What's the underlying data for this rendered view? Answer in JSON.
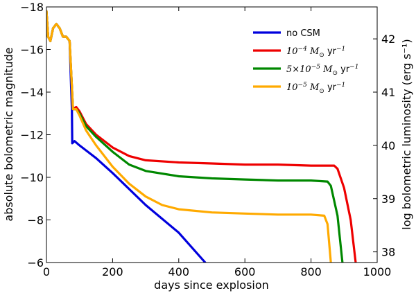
{
  "chart_data": {
    "type": "line",
    "xlabel": "days since explosion",
    "ylabel": "absolute bolometric magnitude",
    "ylabel_right": "log bolometric luminosity (erg s⁻¹)",
    "xlim": [
      0,
      1000
    ],
    "ylim": [
      -6,
      -18
    ],
    "x_ticks": [
      0,
      200,
      400,
      600,
      800,
      1000
    ],
    "y_ticks": [
      -18,
      -16,
      -14,
      -12,
      -10,
      -8,
      -6
    ],
    "y_right_ticks": [
      38,
      39,
      40,
      41,
      42
    ],
    "y_right_scale": "log L = 39.6 - 0.4 (M + 10.5)",
    "grid": false,
    "legend_position": "top-right",
    "series": [
      {
        "name": "no CSM",
        "color": "#0000dd",
        "points": [
          [
            0,
            -17.8
          ],
          [
            5,
            -16.6
          ],
          [
            12,
            -16.4
          ],
          [
            20,
            -17.0
          ],
          [
            30,
            -17.2
          ],
          [
            40,
            -17.0
          ],
          [
            50,
            -16.6
          ],
          [
            60,
            -16.6
          ],
          [
            70,
            -16.4
          ],
          [
            74,
            -14.5
          ],
          [
            77,
            -13.2
          ],
          [
            78,
            -11.6
          ],
          [
            85,
            -11.7
          ],
          [
            100,
            -11.5
          ],
          [
            150,
            -10.9
          ],
          [
            200,
            -10.2
          ],
          [
            300,
            -8.7
          ],
          [
            400,
            -7.4
          ],
          [
            480,
            -6.0
          ]
        ]
      },
      {
        "name": "10⁻⁴ M⊙ yr⁻¹",
        "label_parts": {
          "coef": "10",
          "exp": "−4",
          "unit": "M",
          "sub": "⊙",
          "tail": "yr",
          "tail_exp": "−1"
        },
        "color": "#ee0000",
        "points": [
          [
            0,
            -17.8
          ],
          [
            5,
            -16.6
          ],
          [
            12,
            -16.4
          ],
          [
            20,
            -17.0
          ],
          [
            30,
            -17.2
          ],
          [
            40,
            -17.0
          ],
          [
            50,
            -16.6
          ],
          [
            60,
            -16.6
          ],
          [
            70,
            -16.4
          ],
          [
            76,
            -14.5
          ],
          [
            80,
            -13.2
          ],
          [
            90,
            -13.3
          ],
          [
            100,
            -13.1
          ],
          [
            120,
            -12.5
          ],
          [
            150,
            -12.0
          ],
          [
            200,
            -11.4
          ],
          [
            250,
            -11.0
          ],
          [
            300,
            -10.8
          ],
          [
            400,
            -10.7
          ],
          [
            500,
            -10.65
          ],
          [
            600,
            -10.6
          ],
          [
            700,
            -10.6
          ],
          [
            800,
            -10.55
          ],
          [
            870,
            -10.55
          ],
          [
            880,
            -10.4
          ],
          [
            900,
            -9.5
          ],
          [
            920,
            -8.0
          ],
          [
            935,
            -6.0
          ]
        ]
      },
      {
        "name": "5×10⁻⁵ M⊙ yr⁻¹",
        "label_parts": {
          "coef": "5×10",
          "exp": "−5",
          "unit": "M",
          "sub": "⊙",
          "tail": "yr",
          "tail_exp": "−1"
        },
        "color": "#008800",
        "points": [
          [
            0,
            -17.8
          ],
          [
            5,
            -16.6
          ],
          [
            12,
            -16.4
          ],
          [
            20,
            -17.0
          ],
          [
            30,
            -17.2
          ],
          [
            40,
            -17.0
          ],
          [
            50,
            -16.6
          ],
          [
            60,
            -16.6
          ],
          [
            70,
            -16.4
          ],
          [
            76,
            -14.5
          ],
          [
            80,
            -13.2
          ],
          [
            90,
            -13.2
          ],
          [
            100,
            -13.0
          ],
          [
            120,
            -12.4
          ],
          [
            150,
            -11.9
          ],
          [
            200,
            -11.2
          ],
          [
            250,
            -10.6
          ],
          [
            300,
            -10.3
          ],
          [
            400,
            -10.05
          ],
          [
            500,
            -9.95
          ],
          [
            600,
            -9.9
          ],
          [
            700,
            -9.85
          ],
          [
            800,
            -9.85
          ],
          [
            850,
            -9.8
          ],
          [
            860,
            -9.6
          ],
          [
            880,
            -8.2
          ],
          [
            895,
            -6.0
          ]
        ]
      },
      {
        "name": "10⁻⁵ M⊙ yr⁻¹",
        "label_parts": {
          "coef": "10",
          "exp": "−5",
          "unit": "M",
          "sub": "⊙",
          "tail": "yr",
          "tail_exp": "−1"
        },
        "color": "#ffaa00",
        "points": [
          [
            0,
            -17.8
          ],
          [
            5,
            -16.6
          ],
          [
            12,
            -16.4
          ],
          [
            20,
            -17.0
          ],
          [
            30,
            -17.2
          ],
          [
            40,
            -17.0
          ],
          [
            50,
            -16.6
          ],
          [
            60,
            -16.6
          ],
          [
            70,
            -16.4
          ],
          [
            76,
            -14.5
          ],
          [
            80,
            -13.2
          ],
          [
            90,
            -13.2
          ],
          [
            100,
            -12.9
          ],
          [
            120,
            -12.2
          ],
          [
            150,
            -11.5
          ],
          [
            200,
            -10.5
          ],
          [
            250,
            -9.7
          ],
          [
            300,
            -9.1
          ],
          [
            350,
            -8.7
          ],
          [
            400,
            -8.5
          ],
          [
            500,
            -8.35
          ],
          [
            600,
            -8.3
          ],
          [
            700,
            -8.25
          ],
          [
            800,
            -8.25
          ],
          [
            840,
            -8.2
          ],
          [
            850,
            -7.8
          ],
          [
            860,
            -6.0
          ]
        ]
      }
    ]
  }
}
